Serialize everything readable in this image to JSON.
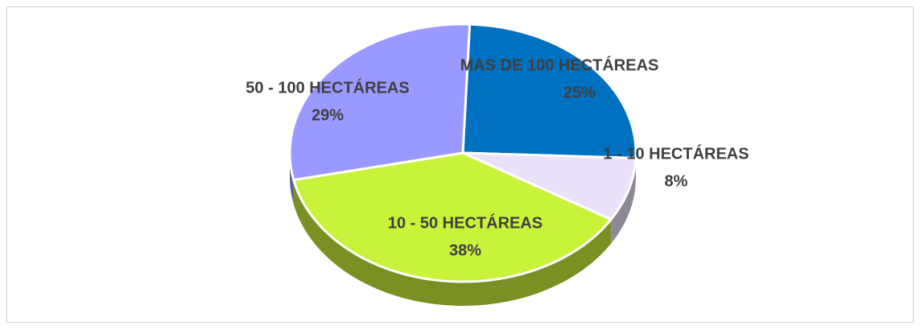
{
  "chart_data": {
    "type": "pie",
    "categories": [
      "MAS DE 100 HECTÁREAS",
      "1 - 10 HECTÁREAS",
      "10 - 50 HECTÁREAS",
      "50 - 100 HECTÁREAS"
    ],
    "values": [
      25,
      8,
      38,
      29
    ],
    "value_labels": [
      "25%",
      "8%",
      "38%",
      "29%"
    ],
    "colors": [
      "#0070c0",
      "#ebe1fa",
      "#c9f23a",
      "#9999ff"
    ]
  }
}
